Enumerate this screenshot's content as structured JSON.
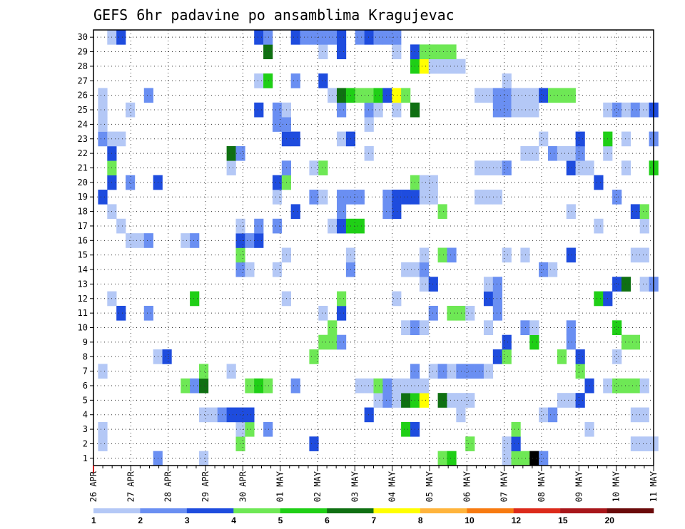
{
  "chart_data": {
    "type": "heatmap",
    "title": "GEFS 6hr padavine po ansamblima Kragujevac",
    "xlabel": "",
    "ylabel": "",
    "y_ticks": [
      "1",
      "2",
      "3",
      "4",
      "5",
      "6",
      "7",
      "8",
      "9",
      "10",
      "11",
      "12",
      "13",
      "14",
      "15",
      "16",
      "17",
      "18",
      "19",
      "20",
      "21",
      "22",
      "23",
      "24",
      "25",
      "26",
      "27",
      "28",
      "29",
      "30"
    ],
    "x_ticks": [
      "26 APR",
      "27 APR",
      "28 APR",
      "29 APR",
      "30 APR",
      "01 MAY",
      "02 MAY",
      "03 MAY",
      "04 MAY",
      "05 MAY",
      "06 MAY",
      "07 MAY",
      "08 MAY",
      "09 MAY",
      "10 MAY",
      "11 MAY"
    ],
    "x_range": [
      "26 APR 00",
      "11 MAY 00"
    ],
    "x_step_hours": 6,
    "grid": true,
    "legend_position": "bottom",
    "legend": {
      "labels": [
        "1",
        "2",
        "3",
        "4",
        "5",
        "6",
        "7",
        "8",
        "10",
        "12",
        "15",
        "20"
      ],
      "colors": [
        "#b4c8f6",
        "#6a8ff2",
        "#1e4cde",
        "#6ee855",
        "#1fcf16",
        "#0f7012",
        "#ffff00",
        "#ffb43c",
        "#f77a10",
        "#dc2a1a",
        "#a8161a",
        "#6a0a0a"
      ]
    },
    "cell_values": {
      "1": {
        "7": 2,
        "12": 1,
        "38": 4,
        "39": 5,
        "45": 1,
        "46": 4,
        "47": 4,
        "48": 20,
        "49": 2
      },
      "2": {
        "1": 1,
        "16": 4,
        "24": 3,
        "41": 4,
        "45": 1,
        "46": 3,
        "59": 1,
        "60": 1,
        "61": 1
      },
      "3": {
        "1": 1,
        "16": 1,
        "17": 4,
        "19": 2,
        "34": 5,
        "35": 3,
        "46": 4,
        "54": 1
      },
      "4": {
        "12": 1,
        "13": 1,
        "14": 2,
        "15": 3,
        "16": 3,
        "17": 3,
        "30": 3,
        "40": 1,
        "49": 1,
        "50": 2,
        "59": 1,
        "60": 1
      },
      "5": {
        "31": 1,
        "32": 2,
        "33": 1,
        "34": 6,
        "35": 5,
        "36": 7,
        "38": 6,
        "39": 1,
        "40": 1,
        "41": 1,
        "51": 1,
        "52": 1,
        "53": 3
      },
      "6": {
        "10": 4,
        "11": 2,
        "12": 6,
        "17": 4,
        "18": 5,
        "19": 4,
        "22": 2,
        "29": 1,
        "30": 1,
        "31": 4,
        "32": 2,
        "33": 1,
        "34": 1,
        "35": 1,
        "36": 1,
        "54": 3,
        "56": 1,
        "57": 4,
        "58": 4,
        "59": 4,
        "60": 1
      },
      "7": {
        "1": 1,
        "12": 4,
        "15": 1,
        "35": 2,
        "37": 1,
        "38": 2,
        "39": 1,
        "40": 2,
        "41": 2,
        "42": 2,
        "43": 1,
        "53": 4
      },
      "8": {
        "7": 1,
        "8": 3,
        "24": 4,
        "44": 3,
        "45": 4,
        "51": 4,
        "53": 3,
        "57": 1
      },
      "9": {
        "25": 4,
        "26": 4,
        "27": 2,
        "45": 3,
        "48": 5,
        "52": 2,
        "58": 4,
        "59": 4
      },
      "10": {
        "26": 4,
        "34": 1,
        "35": 2,
        "36": 1,
        "43": 1,
        "47": 2,
        "48": 1,
        "52": 2,
        "57": 5
      },
      "11": {
        "3": 3,
        "6": 2,
        "25": 1,
        "27": 3,
        "37": 2,
        "39": 4,
        "40": 4,
        "41": 1,
        "44": 2
      },
      "12": {
        "2": 1,
        "11": 5,
        "21": 1,
        "27": 4,
        "33": 1,
        "43": 3,
        "44": 2,
        "55": 5,
        "56": 3
      },
      "13": {
        "36": 1,
        "37": 3,
        "43": 1,
        "44": 2,
        "57": 3,
        "58": 6,
        "60": 1,
        "61": 2
      },
      "14": {
        "16": 2,
        "17": 1,
        "20": 1,
        "28": 2,
        "34": 1,
        "35": 1,
        "36": 2,
        "49": 2,
        "50": 1
      },
      "15": {
        "16": 4,
        "21": 1,
        "28": 1,
        "36": 1,
        "38": 4,
        "39": 2,
        "45": 1,
        "47": 1,
        "52": 3,
        "59": 1,
        "60": 1
      },
      "16": {
        "4": 1,
        "5": 1,
        "6": 2,
        "10": 1,
        "11": 2,
        "16": 3,
        "17": 2,
        "18": 3
      },
      "17": {
        "3": 1,
        "16": 1,
        "18": 2,
        "20": 2,
        "26": 1,
        "27": 3,
        "28": 5,
        "29": 5,
        "55": 1,
        "60": 1
      },
      "18": {
        "2": 1,
        "22": 3,
        "27": 2,
        "32": 2,
        "33": 3,
        "38": 4,
        "52": 1,
        "59": 3,
        "60": 4
      },
      "19": {
        "1": 3,
        "20": 1,
        "24": 2,
        "25": 1,
        "27": 2,
        "28": 2,
        "29": 2,
        "32": 2,
        "33": 3,
        "34": 3,
        "35": 3,
        "36": 1,
        "37": 1,
        "42": 1,
        "43": 1,
        "44": 1,
        "57": 2
      },
      "20": {
        "2": 3,
        "4": 2,
        "7": 3,
        "20": 3,
        "21": 4,
        "35": 4,
        "36": 1,
        "37": 1,
        "55": 3
      },
      "21": {
        "2": 4,
        "15": 1,
        "21": 2,
        "24": 1,
        "25": 4,
        "42": 1,
        "43": 1,
        "44": 1,
        "45": 2,
        "52": 3,
        "53": 1,
        "54": 1,
        "58": 1,
        "61": 5
      },
      "22": {
        "2": 3,
        "15": 6,
        "16": 2,
        "30": 1,
        "47": 1,
        "48": 1,
        "50": 2,
        "51": 1,
        "52": 1,
        "53": 2,
        "56": 1
      },
      "23": {
        "1": 2,
        "2": 1,
        "3": 1,
        "21": 3,
        "22": 3,
        "27": 1,
        "28": 3,
        "49": 1,
        "53": 3,
        "56": 5,
        "58": 1,
        "61": 2
      },
      "24": {
        "1": 1,
        "20": 2,
        "21": 2,
        "30": 1
      },
      "25": {
        "1": 1,
        "4": 1,
        "18": 3,
        "20": 2,
        "21": 1,
        "27": 2,
        "30": 2,
        "31": 1,
        "33": 1,
        "35": 6,
        "44": 2,
        "45": 2,
        "46": 1,
        "47": 1,
        "48": 1,
        "56": 1,
        "57": 2,
        "58": 1,
        "59": 2,
        "60": 1,
        "61": 3
      },
      "26": {
        "1": 1,
        "6": 2,
        "26": 1,
        "27": 6,
        "28": 5,
        "29": 4,
        "30": 4,
        "31": 5,
        "32": 3,
        "33": 7,
        "34": 4,
        "42": 1,
        "43": 1,
        "44": 2,
        "45": 2,
        "46": 1,
        "47": 1,
        "48": 1,
        "49": 3,
        "50": 4,
        "51": 4,
        "52": 4
      },
      "27": {
        "18": 1,
        "19": 5,
        "22": 2,
        "25": 3,
        "45": 1
      },
      "28": {
        "35": 5,
        "36": 7,
        "37": 1,
        "38": 1,
        "39": 1,
        "40": 1
      },
      "29": {
        "19": 6,
        "25": 1,
        "27": 3,
        "33": 1,
        "35": 3,
        "36": 4,
        "37": 4,
        "38": 4,
        "39": 4
      },
      "30": {
        "2": 1,
        "3": 3,
        "18": 3,
        "19": 2,
        "22": 3,
        "23": 2,
        "24": 2,
        "25": 2,
        "26": 2,
        "27": 3,
        "29": 2,
        "30": 3,
        "31": 2,
        "32": 2,
        "33": 2
      }
    }
  }
}
